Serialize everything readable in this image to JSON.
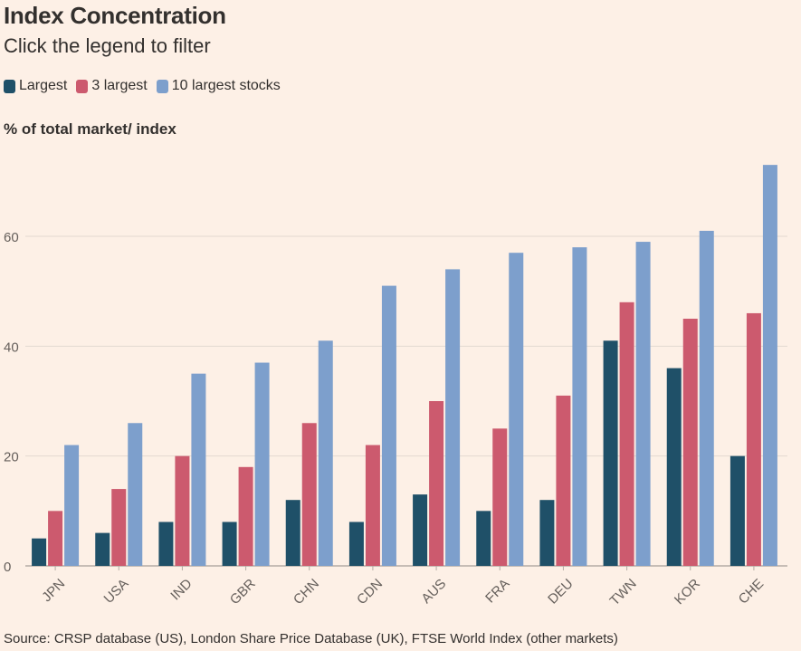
{
  "title": "Index Concentration",
  "subtitle": "Click the legend to filter",
  "source": "Source: CRSP database (US), London Share Price Database (UK), FTSE World Index (other markets)",
  "colors": {
    "largest": "#1f5068",
    "three_largest": "#cc5a6e",
    "ten_largest": "#7d9fcc",
    "grid": "#e3d9d0",
    "axis": "#b5aca5",
    "text": "#66605c"
  },
  "chart_data": {
    "type": "bar",
    "ylabel": "% of total market/ index",
    "xlabel": "",
    "ylim": [
      0,
      75
    ],
    "yticks": [
      0,
      20,
      40,
      60
    ],
    "grid": true,
    "legend_position": "top-left",
    "categories": [
      "JPN",
      "USA",
      "IND",
      "GBR",
      "CHN",
      "CDN",
      "AUS",
      "FRA",
      "DEU",
      "TWN",
      "KOR",
      "CHE"
    ],
    "series": [
      {
        "name": "Largest",
        "color": "#1f5068",
        "values": [
          5,
          6,
          8,
          8,
          12,
          8,
          13,
          10,
          12,
          41,
          36,
          20
        ]
      },
      {
        "name": "3 largest",
        "color": "#cc5a6e",
        "values": [
          10,
          14,
          20,
          18,
          26,
          22,
          30,
          25,
          31,
          48,
          45,
          46
        ]
      },
      {
        "name": "10 largest stocks",
        "color": "#7d9fcc",
        "values": [
          22,
          26,
          35,
          37,
          41,
          51,
          54,
          57,
          58,
          59,
          61,
          73
        ]
      }
    ]
  }
}
